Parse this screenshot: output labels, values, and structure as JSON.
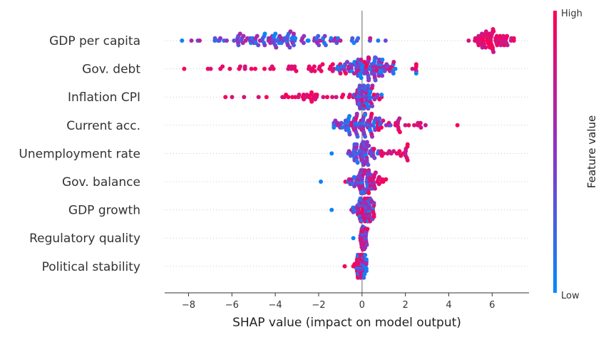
{
  "chart_data": {
    "type": "scatter",
    "xlabel": "SHAP value (impact on model output)",
    "xlim": [
      -9.1,
      7.7
    ],
    "xticks": [
      -8,
      -6,
      -4,
      -2,
      0,
      2,
      4,
      6
    ],
    "xtick_labels": [
      "−8",
      "−6",
      "−4",
      "−2",
      "0",
      "2",
      "4",
      "6"
    ],
    "features": [
      {
        "name": "GDP per capita",
        "min": -8.3,
        "max": 7.0,
        "core_mu": -3.5,
        "core_sd": 1.8,
        "hi_mu": 6.0,
        "hi_sd": 0.45,
        "n": 180
      },
      {
        "name": "Gov. debt",
        "min": -8.2,
        "max": 2.5,
        "core_mu": 0.3,
        "core_sd": 0.55,
        "hi_mu": -2.5,
        "hi_sd": 2.2,
        "n": 150
      },
      {
        "name": "Inflation CPI",
        "min": -6.3,
        "max": 0.9,
        "core_mu": 0.1,
        "core_sd": 0.25,
        "hi_mu": -2.0,
        "hi_sd": 1.8,
        "n": 110
      },
      {
        "name": "Current acc.",
        "min": -1.3,
        "max": 4.4,
        "core_mu": 0.0,
        "core_sd": 0.55,
        "hi_mu": 1.2,
        "hi_sd": 1.0,
        "n": 110
      },
      {
        "name": "Unemployment rate",
        "min": -1.4,
        "max": 2.1,
        "core_mu": 0.0,
        "core_sd": 0.3,
        "hi_mu": 1.5,
        "hi_sd": 0.5,
        "n": 90
      },
      {
        "name": "Gov. balance",
        "min": -1.9,
        "max": 1.1,
        "core_mu": 0.0,
        "core_sd": 0.25,
        "hi_mu": 0.4,
        "hi_sd": 0.4,
        "n": 80
      },
      {
        "name": "GDP growth",
        "min": -1.4,
        "max": 0.55,
        "core_mu": 0.0,
        "core_sd": 0.25,
        "hi_mu": 0.2,
        "hi_sd": 0.2,
        "n": 80
      },
      {
        "name": "Regulatory quality",
        "min": -0.4,
        "max": 0.25,
        "core_mu": 0.05,
        "core_sd": 0.08,
        "hi_mu": 0.05,
        "hi_sd": 0.08,
        "n": 60
      },
      {
        "name": "Political stability",
        "min": -0.8,
        "max": 0.2,
        "core_mu": 0.0,
        "core_sd": 0.12,
        "hi_mu": -0.1,
        "hi_sd": 0.15,
        "n": 60
      }
    ],
    "colorbar": {
      "title": "Feature value",
      "high_label": "High",
      "low_label": "Low",
      "low_color": "#008bfb",
      "high_color": "#ff0052"
    },
    "grid": false
  }
}
